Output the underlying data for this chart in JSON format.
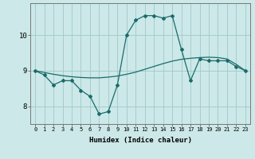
{
  "xlabel": "Humidex (Indice chaleur)",
  "ylabel": "",
  "bg_color": "#cce8e8",
  "grid_color": "#a0c8c8",
  "line_color": "#1a6b6b",
  "xlim": [
    -0.5,
    23.5
  ],
  "ylim": [
    7.5,
    10.9
  ],
  "yticks": [
    8,
    9,
    10
  ],
  "xticks": [
    0,
    1,
    2,
    3,
    4,
    5,
    6,
    7,
    8,
    9,
    10,
    11,
    12,
    13,
    14,
    15,
    16,
    17,
    18,
    19,
    20,
    21,
    22,
    23
  ],
  "curve1_x": [
    0,
    1,
    2,
    3,
    4,
    5,
    6,
    7,
    8,
    9,
    10,
    11,
    12,
    13,
    14,
    15,
    16,
    17,
    18,
    19,
    20,
    21,
    22,
    23
  ],
  "curve1_y": [
    9.0,
    8.88,
    8.6,
    8.72,
    8.72,
    8.45,
    8.28,
    7.78,
    7.85,
    8.6,
    10.0,
    10.42,
    10.55,
    10.55,
    10.48,
    10.55,
    9.6,
    8.72,
    9.33,
    9.28,
    9.28,
    9.28,
    9.12,
    9.0
  ],
  "curve2_x": [
    0,
    1,
    2,
    3,
    4,
    5,
    6,
    7,
    8,
    9,
    10,
    11,
    12,
    13,
    14,
    15,
    16,
    17,
    18,
    19,
    20,
    21,
    22,
    23
  ],
  "curve2_y": [
    9.0,
    8.95,
    8.9,
    8.86,
    8.83,
    8.81,
    8.8,
    8.8,
    8.82,
    8.85,
    8.9,
    8.96,
    9.04,
    9.12,
    9.2,
    9.27,
    9.32,
    9.35,
    9.37,
    9.38,
    9.37,
    9.33,
    9.18,
    9.0
  ]
}
